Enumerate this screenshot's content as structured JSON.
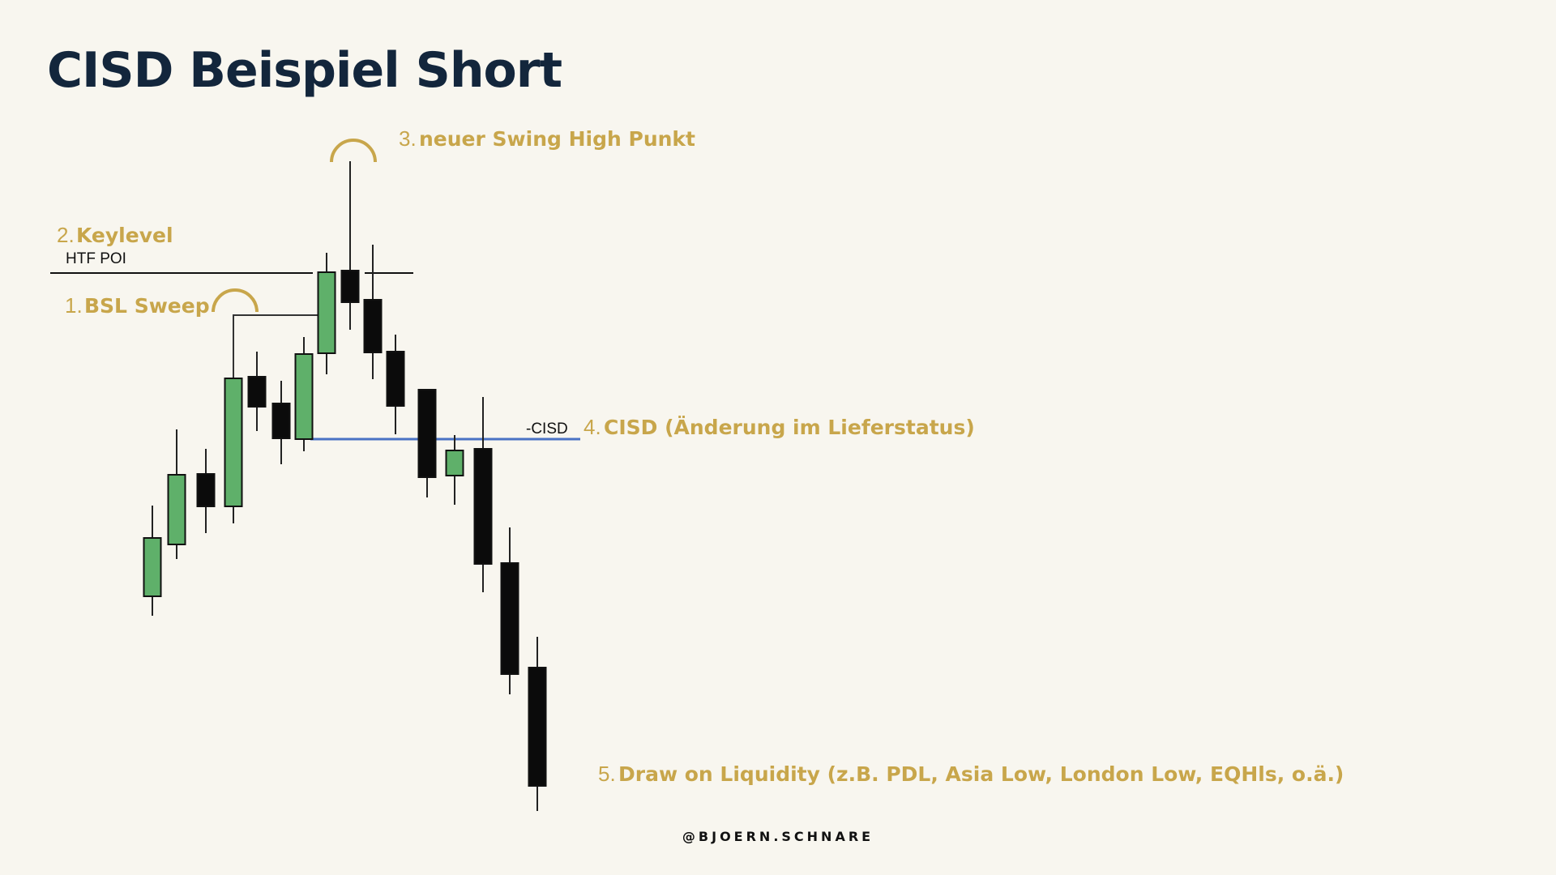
{
  "title": "CISD Beispiel Short",
  "footer": "@BJOERN.SCHNARE",
  "labels": {
    "htf_poi": "HTF POI",
    "cisd_line": "-CISD"
  },
  "annotations": [
    {
      "num": "1.",
      "text": "BSL Sweep"
    },
    {
      "num": "2.",
      "text": "Keylevel"
    },
    {
      "num": "3.",
      "text": "neuer Swing High Punkt"
    },
    {
      "num": "4.",
      "text": "CISD (Änderung im Lieferstatus)"
    },
    {
      "num": "5.",
      "text": "Draw on Liquidity (z.B. PDL, Asia Low, London Low, EQHls, o.ä.)"
    }
  ],
  "colors": {
    "bullish": "#5fb06a",
    "bearish": "#0b0b0b",
    "annotation": "#c8a64b",
    "cisd_line": "#4a72c4",
    "title": "#13263c",
    "background": "#f8f6ef"
  },
  "candles": [
    {
      "dir": "bull"
    },
    {
      "dir": "bull"
    },
    {
      "dir": "bear"
    },
    {
      "dir": "bull"
    },
    {
      "dir": "bear"
    },
    {
      "dir": "bear"
    },
    {
      "dir": "bull"
    },
    {
      "dir": "bull"
    },
    {
      "dir": "bear"
    },
    {
      "dir": "bear"
    },
    {
      "dir": "bear"
    },
    {
      "dir": "bear"
    },
    {
      "dir": "bull"
    },
    {
      "dir": "bear"
    },
    {
      "dir": "bear"
    },
    {
      "dir": "bear"
    }
  ]
}
